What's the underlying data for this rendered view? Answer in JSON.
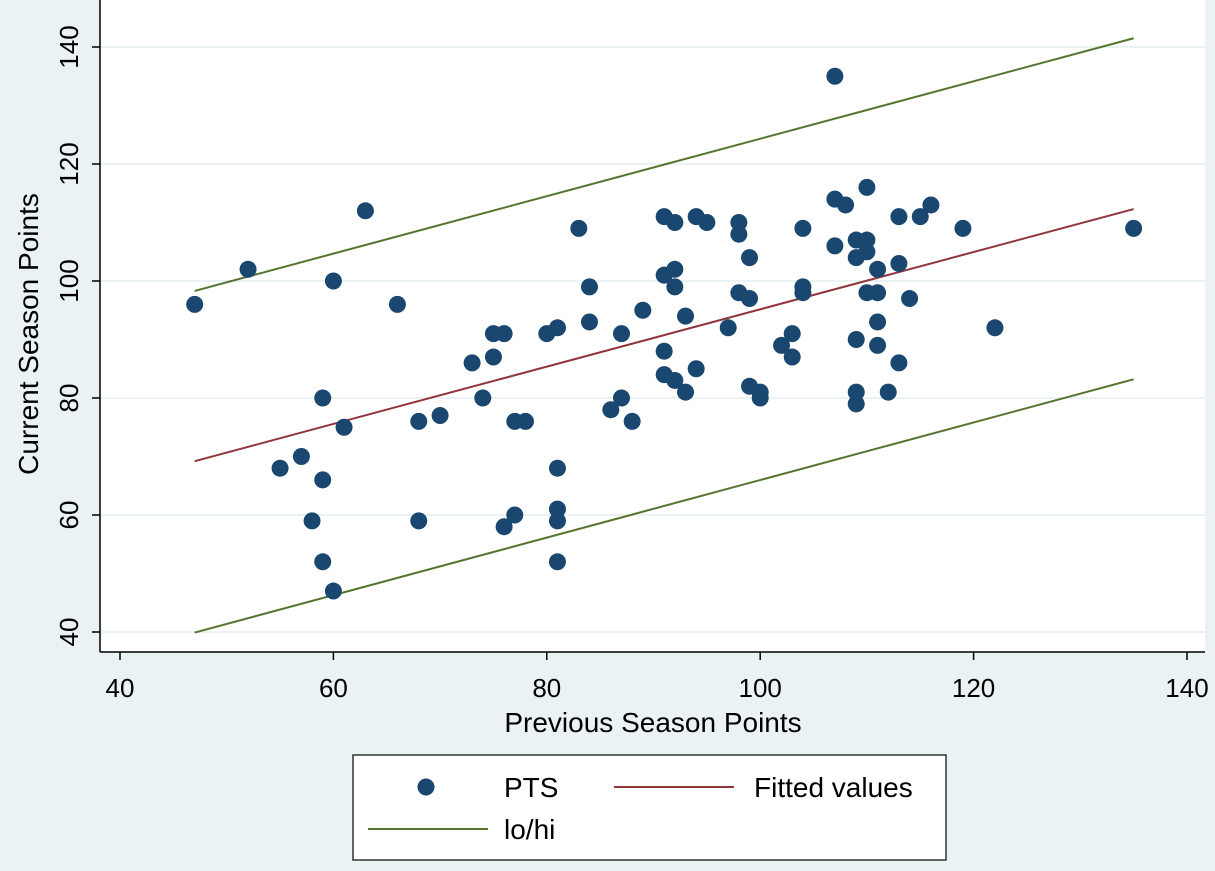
{
  "chart_data": {
    "type": "scatter",
    "xlabel": "Previous Season Points",
    "ylabel": "Current Season Points",
    "xlim": [
      40,
      140
    ],
    "ylim": [
      40,
      140
    ],
    "xticks": [
      40,
      60,
      80,
      100,
      120,
      140
    ],
    "yticks": [
      40,
      60,
      80,
      100,
      120,
      140
    ],
    "grid": "horizontal",
    "legend_position": "bottom",
    "colors": {
      "points": "#1a476f",
      "fitted": "#90353b",
      "lohi": "#55752f",
      "background": "#eaf2f3",
      "plot": "#ffffff"
    },
    "series": [
      {
        "name": "PTS",
        "kind": "scatter",
        "points": [
          [
            47,
            96
          ],
          [
            52,
            102
          ],
          [
            55,
            68
          ],
          [
            57,
            70
          ],
          [
            58,
            59
          ],
          [
            59,
            80
          ],
          [
            59,
            66
          ],
          [
            59,
            52
          ],
          [
            60,
            100
          ],
          [
            60,
            47
          ],
          [
            61,
            75
          ],
          [
            63,
            112
          ],
          [
            66,
            96
          ],
          [
            68,
            76
          ],
          [
            68,
            59
          ],
          [
            70,
            77
          ],
          [
            73,
            86
          ],
          [
            74,
            80
          ],
          [
            75,
            91
          ],
          [
            75,
            87
          ],
          [
            76,
            91
          ],
          [
            76,
            58
          ],
          [
            77,
            76
          ],
          [
            77,
            60
          ],
          [
            78,
            76
          ],
          [
            80,
            91
          ],
          [
            81,
            92
          ],
          [
            81,
            68
          ],
          [
            81,
            61
          ],
          [
            81,
            59
          ],
          [
            81,
            52
          ],
          [
            83,
            109
          ],
          [
            84,
            99
          ],
          [
            84,
            93
          ],
          [
            86,
            78
          ],
          [
            87,
            91
          ],
          [
            87,
            80
          ],
          [
            88,
            76
          ],
          [
            89,
            95
          ],
          [
            91,
            111
          ],
          [
            91,
            101
          ],
          [
            91,
            88
          ],
          [
            91,
            84
          ],
          [
            92,
            110
          ],
          [
            92,
            102
          ],
          [
            92,
            99
          ],
          [
            92,
            83
          ],
          [
            93,
            94
          ],
          [
            93,
            81
          ],
          [
            94,
            111
          ],
          [
            94,
            85
          ],
          [
            95,
            110
          ],
          [
            97,
            92
          ],
          [
            98,
            110
          ],
          [
            98,
            108
          ],
          [
            98,
            98
          ],
          [
            99,
            104
          ],
          [
            99,
            97
          ],
          [
            99,
            82
          ],
          [
            100,
            81
          ],
          [
            100,
            80
          ],
          [
            102,
            89
          ],
          [
            103,
            91
          ],
          [
            103,
            87
          ],
          [
            104,
            109
          ],
          [
            104,
            99
          ],
          [
            104,
            98
          ],
          [
            107,
            135
          ],
          [
            107,
            114
          ],
          [
            107,
            106
          ],
          [
            108,
            113
          ],
          [
            109,
            107
          ],
          [
            109,
            104
          ],
          [
            109,
            90
          ],
          [
            109,
            81
          ],
          [
            109,
            79
          ],
          [
            110,
            116
          ],
          [
            110,
            107
          ],
          [
            110,
            105
          ],
          [
            110,
            98
          ],
          [
            111,
            102
          ],
          [
            111,
            98
          ],
          [
            111,
            93
          ],
          [
            111,
            89
          ],
          [
            112,
            81
          ],
          [
            113,
            111
          ],
          [
            113,
            103
          ],
          [
            113,
            86
          ],
          [
            114,
            97
          ],
          [
            115,
            111
          ],
          [
            116,
            113
          ],
          [
            119,
            109
          ],
          [
            122,
            92
          ],
          [
            135,
            109
          ]
        ]
      },
      {
        "name": "Fitted values",
        "kind": "line",
        "points": [
          [
            47,
            69.2
          ],
          [
            135,
            112.3
          ]
        ]
      },
      {
        "name": "lo/hi",
        "kind": "line",
        "points": [
          [
            47,
            98.3
          ],
          [
            135,
            141.5
          ]
        ]
      },
      {
        "name": "lo/hi lower",
        "kind": "line",
        "points": [
          [
            47,
            39.9
          ],
          [
            135,
            83.2
          ]
        ]
      }
    ],
    "legend": [
      "PTS",
      "Fitted values",
      "lo/hi"
    ]
  }
}
